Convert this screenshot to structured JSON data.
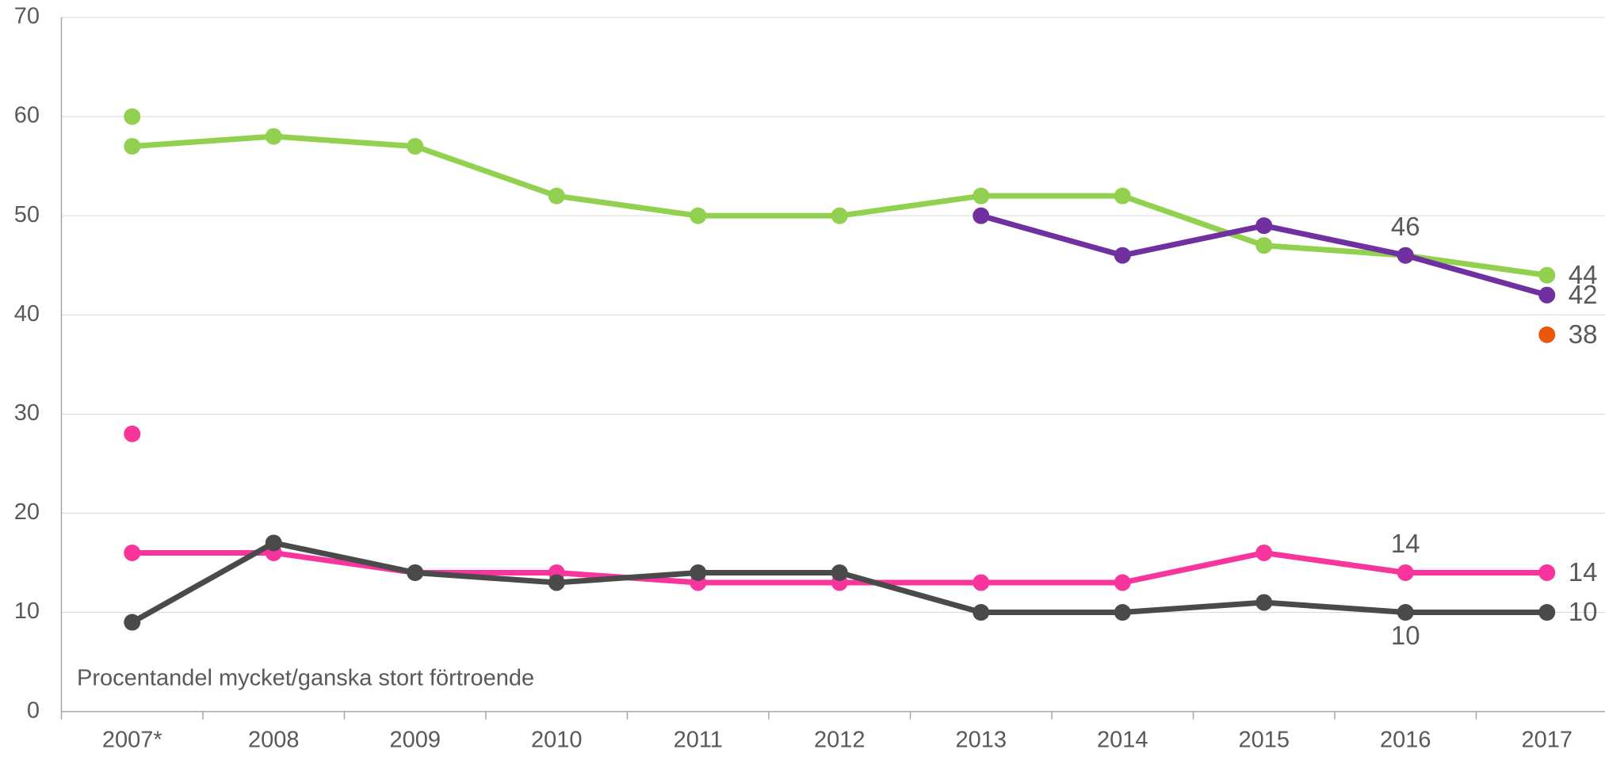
{
  "chart_data": {
    "type": "line",
    "annotation": "Procentandel mycket/ganska stort förtroende",
    "categories": [
      "2007*",
      "2008",
      "2009",
      "2010",
      "2011",
      "2012",
      "2013",
      "2014",
      "2015",
      "2016",
      "2017"
    ],
    "ylim": [
      0,
      70
    ],
    "yticks": [
      0,
      10,
      20,
      30,
      40,
      50,
      60,
      70
    ],
    "grid": true,
    "series": [
      {
        "color": "#92d050",
        "values": [
          57,
          58,
          57,
          52,
          50,
          50,
          52,
          52,
          47,
          46,
          44
        ],
        "value_labels": [
          null,
          null,
          null,
          null,
          null,
          null,
          null,
          null,
          null,
          null,
          "44"
        ]
      },
      {
        "color": "#92d050",
        "values": [
          60,
          null,
          null,
          null,
          null,
          null,
          null,
          null,
          null,
          null,
          null
        ]
      },
      {
        "color": "#7030a0",
        "values": [
          null,
          null,
          null,
          null,
          null,
          null,
          50,
          46,
          49,
          46,
          42
        ],
        "value_labels": [
          null,
          null,
          null,
          null,
          null,
          null,
          null,
          null,
          null,
          "46",
          "42"
        ]
      },
      {
        "color": "#e8590c",
        "values": [
          null,
          null,
          null,
          null,
          null,
          null,
          null,
          null,
          null,
          null,
          38
        ],
        "value_labels": [
          null,
          null,
          null,
          null,
          null,
          null,
          null,
          null,
          null,
          null,
          "38"
        ]
      },
      {
        "color": "#f7359c",
        "values": [
          16,
          16,
          14,
          14,
          13,
          13,
          13,
          13,
          16,
          14,
          14
        ],
        "value_labels": [
          null,
          null,
          null,
          null,
          null,
          null,
          null,
          null,
          null,
          "14",
          "14"
        ]
      },
      {
        "color": "#f7359c",
        "values": [
          28,
          null,
          null,
          null,
          null,
          null,
          null,
          null,
          null,
          null,
          null
        ]
      },
      {
        "color": "#4a4a4a",
        "values": [
          9,
          17,
          14,
          13,
          14,
          14,
          10,
          10,
          11,
          10,
          10
        ],
        "value_labels": [
          null,
          null,
          null,
          null,
          null,
          null,
          null,
          null,
          null,
          "10",
          "10"
        ]
      }
    ]
  }
}
